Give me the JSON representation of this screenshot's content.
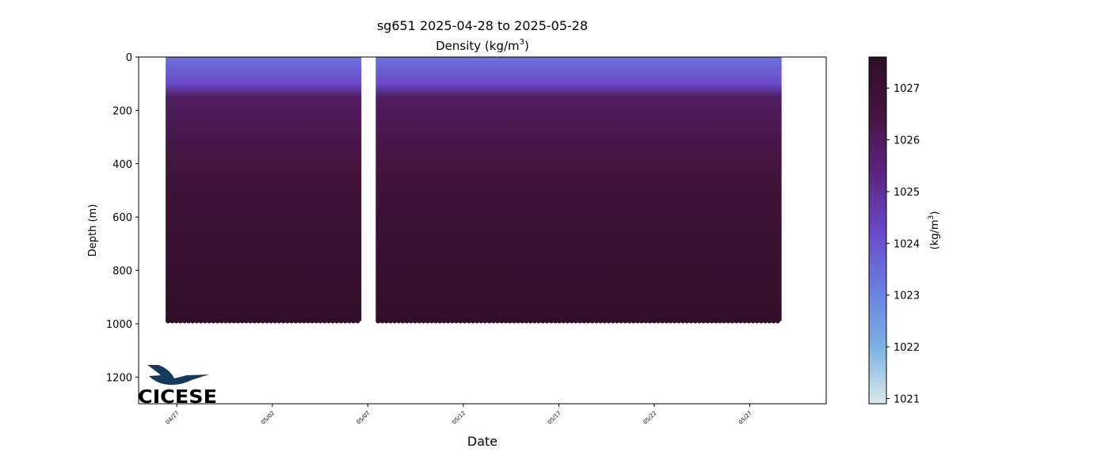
{
  "title": {
    "line1": "sg651 2025-04-28 to 2025-05-28",
    "line2_main": "Density (kg/m",
    "line2_sup": "3",
    "line2_end": ")"
  },
  "logo": {
    "text": "CICESE"
  },
  "colors": {
    "surface": "#7196e6",
    "mid": "#5c2270",
    "deep": "#2f0f26",
    "cbar_stops": [
      "#dbe9ea",
      "#7ab0e2",
      "#6a7ee0",
      "#6a48c8",
      "#5a2480",
      "#451540",
      "#2e0e24"
    ],
    "logo": "#153a5c"
  },
  "chart_data": {
    "type": "heatmap",
    "title": "sg651 2025-04-28 to 2025-05-28",
    "subtitle": "Density (kg/m3)",
    "xlabel": "Date",
    "ylabel": "Depth (m)",
    "x_ticks": [
      "04/27",
      "05/02",
      "05/07",
      "05/12",
      "05/17",
      "05/22",
      "05/27"
    ],
    "x_range": [
      "2025-04-25",
      "2025-05-31"
    ],
    "y_ticks": [
      0,
      200,
      400,
      600,
      800,
      1000,
      1200
    ],
    "ylim": [
      1300,
      0
    ],
    "y_inverted": true,
    "colorbar": {
      "label": "(kg/m3)",
      "label_main": "(kg/m",
      "label_sup": "3",
      "label_end": ")",
      "range": [
        1020.9,
        1027.6
      ],
      "ticks": [
        1021,
        1022,
        1023,
        1024,
        1025,
        1026,
        1027
      ]
    },
    "data_extent": {
      "start": "2025-04-26",
      "end": "2025-05-28",
      "max_depth": 990,
      "gaps": [
        [
          "2025-05-06",
          "2025-05-07"
        ]
      ]
    },
    "profile": [
      {
        "depth": 0,
        "density": 1023.4
      },
      {
        "depth": 100,
        "density": 1024.2
      },
      {
        "depth": 150,
        "density": 1025.9
      },
      {
        "depth": 400,
        "density": 1026.6
      },
      {
        "depth": 700,
        "density": 1027.1
      },
      {
        "depth": 990,
        "density": 1027.5
      }
    ]
  }
}
